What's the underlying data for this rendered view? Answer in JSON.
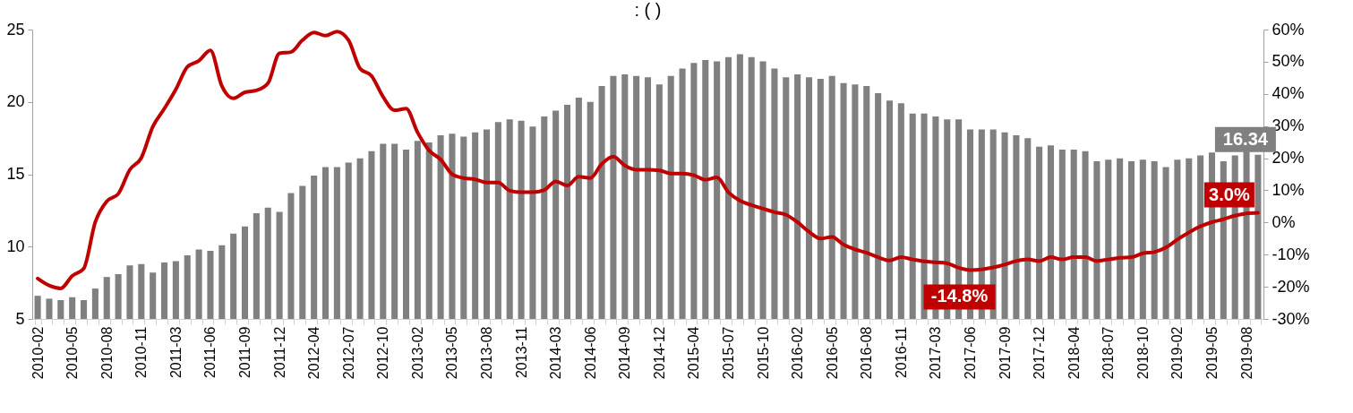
{
  "chart_data": {
    "type": "bar",
    "title": ":          (          )",
    "categories": [
      "2010-02",
      null,
      null,
      "2010-05",
      null,
      null,
      "2010-08",
      null,
      null,
      "2010-11",
      null,
      null,
      "2011-03",
      null,
      null,
      "2011-06",
      null,
      null,
      "2011-09",
      null,
      null,
      "2011-12",
      null,
      null,
      "2012-04",
      null,
      null,
      "2012-07",
      null,
      null,
      "2012-10",
      null,
      null,
      "2013-02",
      null,
      null,
      "2013-05",
      null,
      null,
      "2013-08",
      null,
      null,
      "2013-11",
      null,
      null,
      "2014-03",
      null,
      null,
      "2014-06",
      null,
      null,
      "2014-09",
      null,
      null,
      "2014-12",
      null,
      null,
      "2015-04",
      null,
      null,
      "2015-07",
      null,
      null,
      "2015-10",
      null,
      null,
      "2016-02",
      null,
      null,
      "2016-05",
      null,
      null,
      "2016-08",
      null,
      null,
      "2016-11",
      null,
      null,
      "2017-03",
      null,
      null,
      "2017-06",
      null,
      null,
      "2017-09",
      null,
      null,
      "2017-12",
      null,
      null,
      "2018-04",
      null,
      null,
      "2018-07",
      null,
      null,
      "2018-10",
      null,
      null,
      "2019-02",
      null,
      null,
      "2019-05",
      null,
      null,
      "2019-08",
      null
    ],
    "series": [
      {
        "color": "#808080",
        "values": [
          6.6,
          6.4,
          6.3,
          6.5,
          6.3,
          7.1,
          7.9,
          8.1,
          8.7,
          8.8,
          8.2,
          8.9,
          9.0,
          9.4,
          9.8,
          9.7,
          10.1,
          10.9,
          11.4,
          12.3,
          12.7,
          12.4,
          13.7,
          14.2,
          14.9,
          15.5,
          15.5,
          15.8,
          16.1,
          16.6,
          17.1,
          17.1,
          16.7,
          17.3,
          17.2,
          17.7,
          17.8,
          17.6,
          17.9,
          18.1,
          18.6,
          18.8,
          18.7,
          18.3,
          19.0,
          19.4,
          19.8,
          20.3,
          20.0,
          21.1,
          21.8,
          21.9,
          21.8,
          21.7,
          21.2,
          21.8,
          22.3,
          22.7,
          22.9,
          22.8,
          23.1,
          23.3,
          23.1,
          22.8,
          22.3,
          21.7,
          21.9,
          21.7,
          21.6,
          21.8,
          21.3,
          21.2,
          21.1,
          20.6,
          20.1,
          19.9,
          19.2,
          19.2,
          19.0,
          18.8,
          18.8,
          18.1,
          18.1,
          18.1,
          17.9,
          17.7,
          17.5,
          16.9,
          17.0,
          16.7,
          16.7,
          16.6,
          15.9,
          16.0,
          16.1,
          15.9,
          16.0,
          15.9,
          15.5,
          16.0,
          16.1,
          16.3,
          16.5,
          15.9,
          16.3,
          16.6,
          16.34
        ],
        "value_labels": [
          null,
          null,
          null,
          null,
          null,
          null,
          null,
          null,
          null,
          null,
          null,
          null,
          null,
          null,
          null,
          null,
          null,
          null,
          null,
          null,
          null,
          null,
          null,
          null,
          null,
          null,
          null,
          null,
          null,
          null,
          null,
          null,
          null,
          null,
          null,
          null,
          null,
          null,
          null,
          null,
          null,
          null,
          null,
          null,
          null,
          null,
          null,
          null,
          null,
          null,
          null,
          null,
          null,
          null,
          null,
          null,
          null,
          null,
          null,
          null,
          null,
          null,
          null,
          null,
          null,
          null,
          null,
          null,
          null,
          null,
          null,
          null,
          null,
          null,
          null,
          null,
          null,
          null,
          null,
          null,
          null,
          null,
          null,
          null,
          null,
          null,
          null,
          null,
          null,
          null,
          null,
          null,
          null,
          null,
          null,
          null,
          null,
          null,
          null,
          null,
          null,
          null,
          null,
          null,
          null,
          null,
          "16.34"
        ]
      },
      {
        "type": "line",
        "axis": "y2",
        "color": "#c00000",
        "values": [
          -17.4,
          -19.6,
          -20.5,
          -16.6,
          -14.3,
          0.1,
          6.6,
          8.9,
          16.4,
          20.1,
          29.8,
          35.4,
          41.4,
          48.4,
          50.3,
          53.5,
          42.4,
          38.6,
          40.5,
          41.1,
          43.3,
          52.6,
          53.0,
          56.7,
          59.1,
          58.1,
          59.4,
          56.7,
          47.9,
          45.6,
          39.1,
          34.9,
          35.4,
          28.0,
          22.4,
          19.6,
          15.0,
          13.8,
          13.4,
          12.4,
          12.4,
          9.9,
          9.4,
          9.4,
          10.1,
          12.8,
          11.5,
          14.2,
          13.8,
          18.2,
          20.5,
          17.7,
          16.4,
          16.4,
          16.2,
          15.2,
          15.2,
          14.7,
          13.3,
          14.0,
          9.4,
          6.8,
          5.4,
          4.3,
          3.2,
          2.4,
          0.1,
          -2.9,
          -5.0,
          -4.5,
          -6.9,
          -8.4,
          -9.4,
          -10.8,
          -11.8,
          -10.8,
          -11.5,
          -12.1,
          -12.4,
          -12.7,
          -14.1,
          -14.8,
          -14.6,
          -14.0,
          -13.1,
          -12.0,
          -11.5,
          -12.0,
          -10.8,
          -11.5,
          -10.8,
          -10.8,
          -12.0,
          -11.5,
          -11.0,
          -10.8,
          -9.6,
          -9.2,
          -7.8,
          -5.3,
          -3.1,
          -1.2,
          0.1,
          1.0,
          2.1,
          2.8,
          3.0
        ],
        "value_labels": [
          null,
          null,
          null,
          null,
          null,
          null,
          null,
          null,
          null,
          null,
          null,
          null,
          null,
          null,
          null,
          null,
          null,
          null,
          null,
          null,
          null,
          null,
          null,
          null,
          null,
          null,
          null,
          null,
          null,
          null,
          null,
          null,
          null,
          null,
          null,
          null,
          null,
          null,
          null,
          null,
          null,
          null,
          null,
          null,
          null,
          null,
          null,
          null,
          null,
          null,
          null,
          null,
          null,
          null,
          null,
          null,
          null,
          null,
          null,
          null,
          null,
          null,
          null,
          null,
          null,
          null,
          null,
          null,
          null,
          null,
          null,
          null,
          null,
          null,
          null,
          null,
          null,
          null,
          null,
          null,
          null,
          "-14.8%",
          null,
          null,
          null,
          null,
          null,
          null,
          null,
          null,
          null,
          null,
          null,
          null,
          null,
          null,
          null,
          null,
          null,
          null,
          null,
          null,
          null,
          null,
          null,
          null,
          "3.0%"
        ]
      }
    ],
    "ylim": [
      5,
      25
    ],
    "yticks": [
      5,
      10,
      15,
      20,
      25
    ],
    "y2lim": [
      -30,
      60
    ],
    "y2ticks": [
      {
        "value": -30,
        "label": "-30%"
      },
      {
        "value": -20,
        "label": "-20%"
      },
      {
        "value": -10,
        "label": "-10%"
      },
      {
        "value": 0,
        "label": "0%"
      },
      {
        "value": 10,
        "label": "10%"
      },
      {
        "value": 20,
        "label": "20%"
      },
      {
        "value": 30,
        "label": "30%"
      },
      {
        "value": 40,
        "label": "40%"
      },
      {
        "value": 50,
        "label": "50%"
      },
      {
        "value": 60,
        "label": "60%"
      }
    ],
    "grid": false
  }
}
